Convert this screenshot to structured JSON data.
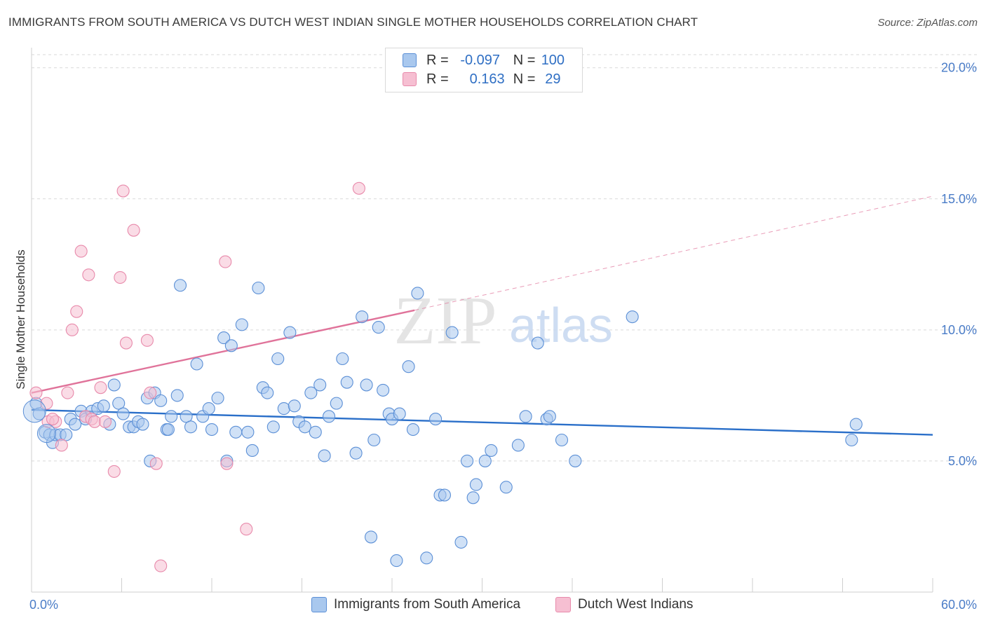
{
  "title": "IMMIGRANTS FROM SOUTH AMERICA VS DUTCH WEST INDIAN SINGLE MOTHER HOUSEHOLDS CORRELATION CHART",
  "source": "Source: ZipAtlas.com",
  "watermark": {
    "zip": "ZIP",
    "atlas": "atlas"
  },
  "legend": {
    "rows": [
      {
        "r_label": "R =",
        "r_value": "-0.097",
        "n_label": "N =",
        "n_value": "100"
      },
      {
        "r_label": "R =",
        "r_value": "0.163",
        "n_label": "N =",
        "n_value": "29"
      }
    ]
  },
  "bottom_legend": [
    "Immigrants from South America",
    "Dutch West Indians"
  ],
  "colors": {
    "blue_fill": "#a9c8ee",
    "blue_stroke": "#5b8fd6",
    "blue_line": "#2a6fc9",
    "pink_fill": "#f6bfd2",
    "pink_stroke": "#e88aab",
    "pink_line": "#e0739a",
    "grid": "#d9d9d9",
    "tick_text": "#4a7cc7"
  },
  "chart_data": {
    "type": "scatter",
    "title": "IMMIGRANTS FROM SOUTH AMERICA VS DUTCH WEST INDIAN SINGLE MOTHER HOUSEHOLDS CORRELATION CHART",
    "xlabel": "",
    "ylabel": "Single Mother Households",
    "xlim": [
      0,
      60
    ],
    "ylim": [
      0,
      20.5
    ],
    "x_tick_labels": [
      "0.0%",
      "60.0%"
    ],
    "y_ticks": [
      5,
      10,
      15,
      20
    ],
    "y_tick_labels": [
      "5.0%",
      "10.0%",
      "15.0%",
      "20.0%"
    ],
    "grid": true,
    "series": [
      {
        "name": "Immigrants from South America",
        "r": -0.097,
        "n": 100,
        "trend": {
          "x0": 0,
          "y0": 6.95,
          "x1": 60,
          "y1": 6.0,
          "dashed_to": null
        },
        "points": [
          [
            0.3,
            7.2
          ],
          [
            0.5,
            6.8
          ],
          [
            0.9,
            6.1
          ],
          [
            1.2,
            6.0
          ],
          [
            1.4,
            5.7
          ],
          [
            1.6,
            6.0
          ],
          [
            1.9,
            6.0
          ],
          [
            2.3,
            6.0
          ],
          [
            2.6,
            6.6
          ],
          [
            2.9,
            6.4
          ],
          [
            3.3,
            6.9
          ],
          [
            3.6,
            6.6
          ],
          [
            4.0,
            6.9
          ],
          [
            4.4,
            7.0
          ],
          [
            4.8,
            7.1
          ],
          [
            5.2,
            6.4
          ],
          [
            5.5,
            7.9
          ],
          [
            5.8,
            7.2
          ],
          [
            6.1,
            6.8
          ],
          [
            6.5,
            6.3
          ],
          [
            6.8,
            6.3
          ],
          [
            7.1,
            6.5
          ],
          [
            7.4,
            6.4
          ],
          [
            7.7,
            7.4
          ],
          [
            7.9,
            5.0
          ],
          [
            8.2,
            7.6
          ],
          [
            8.6,
            7.3
          ],
          [
            9.0,
            6.2
          ],
          [
            9.3,
            6.7
          ],
          [
            9.7,
            7.5
          ],
          [
            9.9,
            11.7
          ],
          [
            10.3,
            6.7
          ],
          [
            10.6,
            6.3
          ],
          [
            11.0,
            8.7
          ],
          [
            11.4,
            6.7
          ],
          [
            11.8,
            7.0
          ],
          [
            12.0,
            6.2
          ],
          [
            12.4,
            7.4
          ],
          [
            12.8,
            9.7
          ],
          [
            13.0,
            5.0
          ],
          [
            13.3,
            9.4
          ],
          [
            13.6,
            6.1
          ],
          [
            14.0,
            10.2
          ],
          [
            14.4,
            6.1
          ],
          [
            14.7,
            5.4
          ],
          [
            15.1,
            11.6
          ],
          [
            15.4,
            7.8
          ],
          [
            15.7,
            7.6
          ],
          [
            16.1,
            6.3
          ],
          [
            16.4,
            8.9
          ],
          [
            16.8,
            7.0
          ],
          [
            17.2,
            9.9
          ],
          [
            17.5,
            7.1
          ],
          [
            17.8,
            6.5
          ],
          [
            18.2,
            6.3
          ],
          [
            18.6,
            7.6
          ],
          [
            18.9,
            6.1
          ],
          [
            19.2,
            7.9
          ],
          [
            19.5,
            5.2
          ],
          [
            19.8,
            6.7
          ],
          [
            20.3,
            7.2
          ],
          [
            20.7,
            8.9
          ],
          [
            21.0,
            8.0
          ],
          [
            21.6,
            5.3
          ],
          [
            22.0,
            10.5
          ],
          [
            22.3,
            7.9
          ],
          [
            22.8,
            5.8
          ],
          [
            23.1,
            10.1
          ],
          [
            23.4,
            7.7
          ],
          [
            23.8,
            6.8
          ],
          [
            24.0,
            6.6
          ],
          [
            24.5,
            6.8
          ],
          [
            25.1,
            8.6
          ],
          [
            25.4,
            6.2
          ],
          [
            25.7,
            11.4
          ],
          [
            26.3,
            1.3
          ],
          [
            26.9,
            6.6
          ],
          [
            27.2,
            3.7
          ],
          [
            27.5,
            3.7
          ],
          [
            28.0,
            9.9
          ],
          [
            28.6,
            1.9
          ],
          [
            29.0,
            5.0
          ],
          [
            29.4,
            3.6
          ],
          [
            29.6,
            4.1
          ],
          [
            30.2,
            5.0
          ],
          [
            30.6,
            5.4
          ],
          [
            31.6,
            4.0
          ],
          [
            32.4,
            5.6
          ],
          [
            32.9,
            6.7
          ],
          [
            33.7,
            9.5
          ],
          [
            34.3,
            6.6
          ],
          [
            34.5,
            6.7
          ],
          [
            35.3,
            5.8
          ],
          [
            36.2,
            5.0
          ],
          [
            40.0,
            10.5
          ],
          [
            54.6,
            5.8
          ],
          [
            54.9,
            6.4
          ],
          [
            24.3,
            1.2
          ],
          [
            22.6,
            2.1
          ],
          [
            9.1,
            6.2
          ]
        ]
      },
      {
        "name": "Dutch West Indians",
        "r": 0.163,
        "n": 29,
        "trend": {
          "x0": 0,
          "y0": 7.6,
          "x1": 25.5,
          "y1": 10.75,
          "dashed_to": {
            "x": 60,
            "y": 15.1
          }
        },
        "points": [
          [
            0.3,
            7.6
          ],
          [
            1.1,
            6.5
          ],
          [
            1.6,
            6.5
          ],
          [
            2.0,
            5.6
          ],
          [
            2.4,
            7.6
          ],
          [
            2.7,
            10.0
          ],
          [
            3.0,
            10.7
          ],
          [
            3.3,
            13.0
          ],
          [
            3.6,
            6.7
          ],
          [
            3.8,
            12.1
          ],
          [
            4.0,
            6.6
          ],
          [
            4.2,
            6.5
          ],
          [
            4.6,
            7.8
          ],
          [
            4.9,
            6.5
          ],
          [
            5.5,
            4.6
          ],
          [
            5.9,
            12.0
          ],
          [
            6.1,
            15.3
          ],
          [
            6.3,
            9.5
          ],
          [
            6.8,
            13.8
          ],
          [
            7.7,
            9.6
          ],
          [
            7.9,
            7.6
          ],
          [
            8.3,
            4.9
          ],
          [
            8.6,
            1.0
          ],
          [
            12.9,
            12.6
          ],
          [
            13.0,
            4.9
          ],
          [
            14.3,
            2.4
          ],
          [
            21.8,
            15.4
          ],
          [
            1.0,
            7.2
          ],
          [
            1.4,
            6.6
          ]
        ]
      }
    ]
  }
}
